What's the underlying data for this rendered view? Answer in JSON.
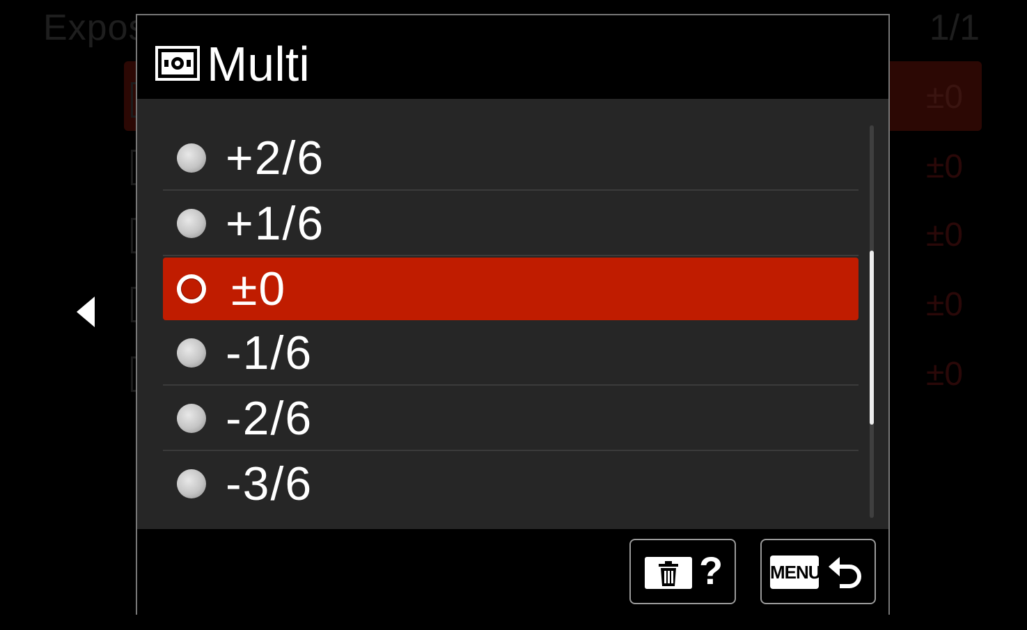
{
  "background": {
    "title": "Expos",
    "page_indicator": "1/1",
    "row_values": [
      "±0",
      "±0",
      "±0",
      "±0",
      "±0"
    ]
  },
  "dialog": {
    "title": "Multi",
    "title_icon": "multi-metering-icon",
    "options": [
      {
        "label": "+2/6",
        "selected": false
      },
      {
        "label": "+1/6",
        "selected": false
      },
      {
        "label": "±0",
        "selected": true
      },
      {
        "label": "-1/6",
        "selected": false
      },
      {
        "label": "-2/6",
        "selected": false
      },
      {
        "label": "-3/6",
        "selected": false
      }
    ],
    "footer": {
      "help_label": "?",
      "help_icon": "trash-icon",
      "menu_label": "MENU",
      "return_icon": "return-arrow-icon"
    }
  },
  "colors": {
    "selection": "#c01c00",
    "list_background": "#262626"
  }
}
